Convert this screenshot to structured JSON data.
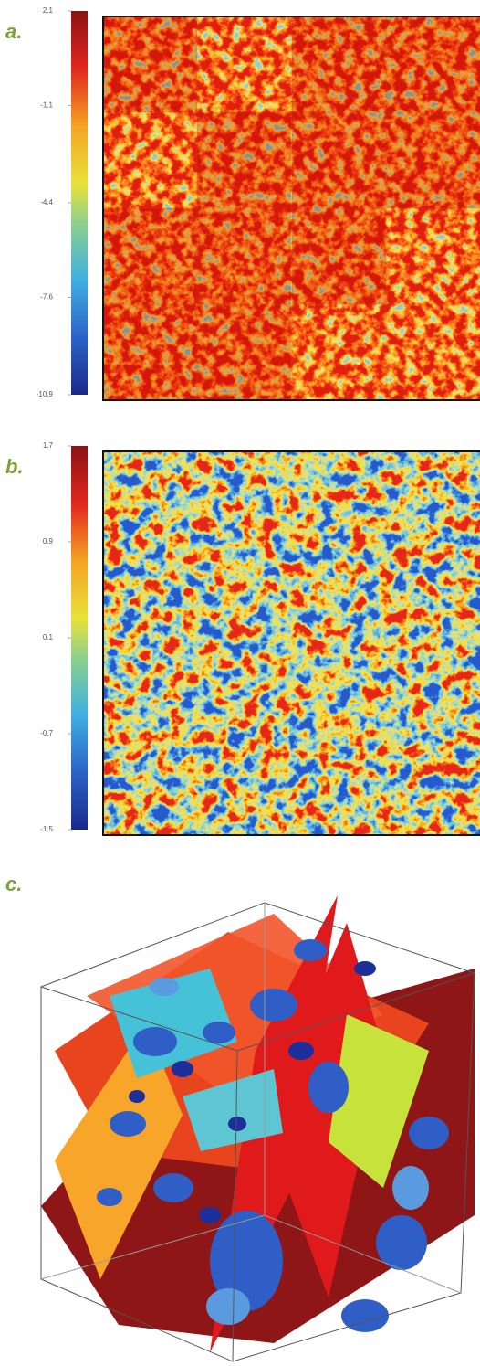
{
  "panels": [
    {
      "label": "a.",
      "colorbar": {
        "ylim": [
          -10.9,
          2.1
        ],
        "yticks": [
          2.1,
          -1.1,
          -4.4,
          -7.6,
          -10.9
        ]
      }
    },
    {
      "label": "b.",
      "colorbar": {
        "ylim": [
          -1.5,
          1.7
        ],
        "yticks": [
          1.7,
          0.9,
          0.1,
          -0.7,
          -1.5
        ]
      }
    },
    {
      "label": "c."
    }
  ]
}
